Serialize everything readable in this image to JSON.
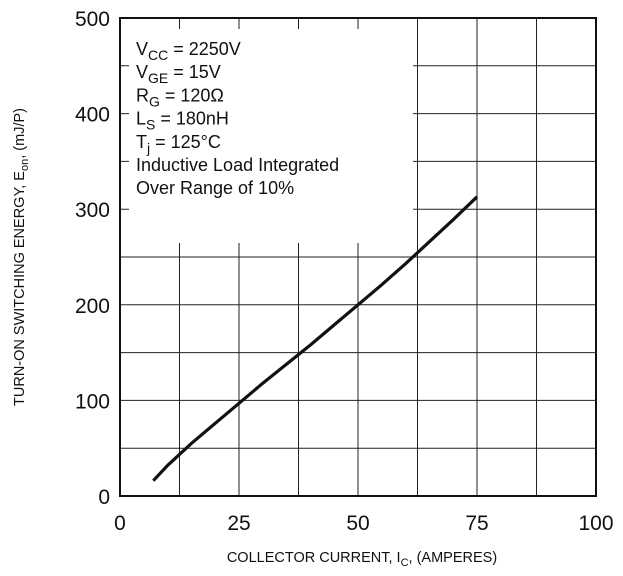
{
  "chart_data": {
    "type": "line",
    "xlabel": {
      "main": "COLLECTOR CURRENT, I",
      "sub": "C",
      "suffix": ", (AMPERES)"
    },
    "ylabel": {
      "main": "TURN-ON SWITCHING ENERGY, E",
      "sub": "on",
      "suffix": ", (mJ/P)"
    },
    "xlim": [
      0,
      100
    ],
    "ylim": [
      0,
      500
    ],
    "xticks": [
      0,
      25,
      50,
      75,
      100
    ],
    "yticks": [
      0,
      100,
      200,
      300,
      400,
      500
    ],
    "x_minor_step": 12.5,
    "y_minor_step": 50,
    "grid": true,
    "series": [
      {
        "x": [
          7,
          10,
          15,
          20,
          25,
          30,
          35,
          40,
          45,
          50,
          55,
          60,
          65,
          70,
          75
        ],
        "y": [
          16,
          32,
          55,
          76,
          97,
          118,
          138,
          158,
          179,
          200,
          221,
          243,
          266,
          289,
          313
        ],
        "color": "#111111"
      }
    ],
    "conditions": [
      {
        "main": "V",
        "sub": "CC",
        "rest": " = 2250V"
      },
      {
        "main": "V",
        "sub": "GE",
        "rest": " = 15V"
      },
      {
        "main": "R",
        "sub": "G",
        "rest": " = 120Ω"
      },
      {
        "main": "L",
        "sub": "S",
        "rest": " = 180nH"
      },
      {
        "main": "T",
        "sub": "j",
        "rest": " = 125°C"
      },
      {
        "main": "Inductive Load Integrated",
        "sub": "",
        "rest": ""
      },
      {
        "main": "Over Range of 10%",
        "sub": "",
        "rest": ""
      }
    ]
  }
}
